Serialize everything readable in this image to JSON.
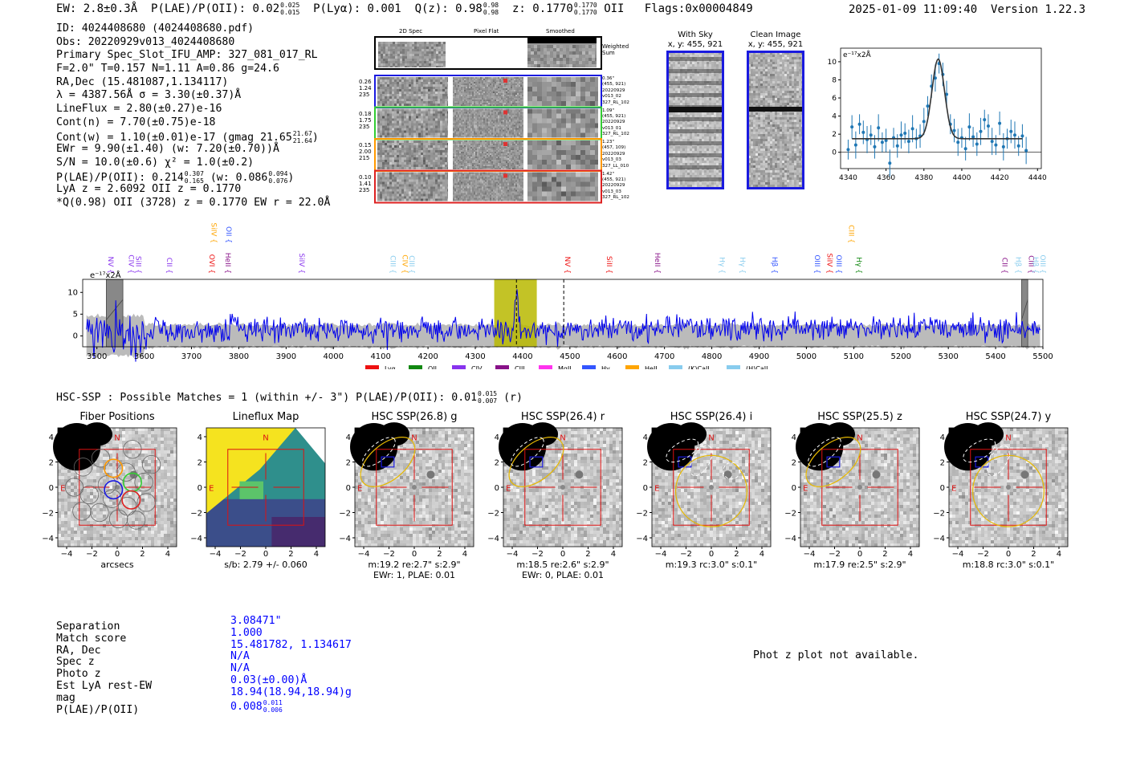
{
  "header": {
    "ew": "EW: 2.8±0.3Å",
    "plae_label": "P(LAE)/P(OII): 0.02",
    "plae_hi": "0.025",
    "plae_lo": "0.015",
    "plya": "P(Lyα): 0.001",
    "qz_label": "Q(z): 0.98",
    "qz_hi": "0.98",
    "qz_lo": "0.98",
    "z_label": "z: 0.1770",
    "z_hi": "0.1770",
    "z_lo": "0.1770",
    "z_line": "OII",
    "flags": "Flags:0x00004849",
    "datetime": "2025-01-09 11:09:40",
    "version": "Version 1.22.3"
  },
  "info": {
    "id": "ID: 4024408680 (4024408680.pdf)",
    "obs": "Obs: 20220929v013_4024408680",
    "primary": "Primary Spec_Slot_IFU_AMP: 327_081_017_RL",
    "fit": "F=2.0\"  T=0.157  N=1.11  A=0.86  g=24.6",
    "radec": "RA,Dec (15.481087,1.134117)",
    "lambda": "λ = 4387.56Å  σ = 3.30(±0.37)Å",
    "lineflux": "LineFlux = 2.80(±0.27)e-16",
    "cont_n": "Cont(n) = 7.70(±0.75)e-18",
    "cont_w": "Cont(w) = 1.10(±0.01)e-17 (gmag 21.65",
    "gmag_hi": "21.67",
    "gmag_lo": "21.64",
    "cont_w_end": ")",
    "ewr": "EWr = 9.90(±1.40) (w: 7.20(±0.70))Å",
    "sn": "S/N = 10.0(±0.6)  χ² = 1.0(±0.2)",
    "plae": "P(LAE)/P(OII): 0.214",
    "plae_hi": "0.307",
    "plae_lo": "0.165",
    "plae_w": "(w: 0.086",
    "plae_w_hi": "0.094",
    "plae_w_lo": "0.076",
    "plae_w_end": ")",
    "lya": "LyA z = 2.6092  OII z = 0.1770",
    "qline": "*Q(0.98) OII (3728) z = 0.1770  EW r = 22.0Å"
  },
  "cutouts": {
    "col_titles": [
      "2D Spec",
      "Pixel Flat",
      "Smoothed"
    ],
    "weighted_sum": "Weighted Sum",
    "rows": [
      {
        "left": [
          "0.26",
          "1.24",
          "235"
        ],
        "right": [
          "0.36\"",
          "(455, 921)",
          "20220929",
          "v013_02",
          "327_RL_102"
        ],
        "color": "#1a1adf"
      },
      {
        "left": [
          "0.18",
          "1.75",
          "235"
        ],
        "right": [
          "1.09\"",
          "(455, 921)",
          "20220929",
          "v013_01",
          "327_RL_102"
        ],
        "color": "#33cc33"
      },
      {
        "left": [
          "0.15",
          "2.00",
          "215"
        ],
        "right": [
          "1.23\"",
          "(457, 109)",
          "20220929",
          "v013_03",
          "327_LL_010"
        ],
        "color": "#ff9900"
      },
      {
        "left": [
          "0.10",
          "1.41",
          "235"
        ],
        "right": [
          "1.42\"",
          "(455, 921)",
          "20220929",
          "v013_03",
          "327_RL_102"
        ],
        "color": "#dd2222"
      }
    ]
  },
  "sky": {
    "with_sky_title": "With Sky",
    "with_sky_sub": "x, y: 455, 921",
    "clean_title": "Clean Image",
    "clean_sub": "x, y: 455, 921"
  },
  "chart_data": [
    {
      "type": "line",
      "title": "",
      "ylabel": "e⁻¹⁷x2Å",
      "x": [
        4340,
        4342,
        4344,
        4346,
        4348,
        4350,
        4352,
        4354,
        4356,
        4358,
        4360,
        4362,
        4364,
        4366,
        4368,
        4370,
        4372,
        4374,
        4376,
        4378,
        4380,
        4382,
        4384,
        4386,
        4388,
        4390,
        4392,
        4394,
        4396,
        4398,
        4400,
        4402,
        4404,
        4406,
        4408,
        4410,
        4412,
        4414,
        4416,
        4418,
        4420,
        4422,
        4424,
        4426,
        4428,
        4430,
        4432,
        4434
      ],
      "y": [
        0.3,
        2.8,
        0.8,
        3.1,
        2.2,
        1.4,
        1.9,
        0.6,
        2.7,
        1.1,
        1.3,
        -1.2,
        1.6,
        0.7,
        1.9,
        2.1,
        1.2,
        2.6,
        1.5,
        1.8,
        3.4,
        5.1,
        7.3,
        8.2,
        9.8,
        8.6,
        6.4,
        3.1,
        2.4,
        1.1,
        1.6,
        0.4,
        2.8,
        1.7,
        0.9,
        2.3,
        3.6,
        2.9,
        1.2,
        0.8,
        3.2,
        0.6,
        1.5,
        2.3,
        1.9,
        0.7,
        1.8,
        0.2
      ],
      "fit": {
        "amp": 8.8,
        "center": 4387.56,
        "sigma": 3.3,
        "cont": 1.5
      },
      "xticks": [
        4340,
        4360,
        4380,
        4400,
        4420,
        4440
      ],
      "yticks": [
        0,
        2,
        4,
        6,
        8,
        10
      ],
      "xlim": [
        4336,
        4442
      ],
      "ylim": [
        -1.8,
        11.5
      ]
    },
    {
      "type": "line",
      "ylabel": "e⁻¹⁷x2Å",
      "xlim": [
        3470,
        5500
      ],
      "ylim": [
        -2.5,
        13
      ],
      "xticks": [
        3500,
        3600,
        3700,
        3800,
        3900,
        4000,
        4100,
        4200,
        4300,
        4400,
        4500,
        4600,
        4700,
        4800,
        4900,
        5000,
        5100,
        5200,
        5300,
        5400,
        5500
      ],
      "yticks": [
        0,
        5,
        10
      ],
      "highlight": [
        4340,
        4430
      ],
      "marked_lines": [
        4387,
        4487
      ],
      "masked": [
        [
          3520,
          3555
        ],
        [
          5455,
          5468
        ]
      ],
      "legend": [
        {
          "label": "Lyα",
          "color": "#ee1111"
        },
        {
          "label": "OII",
          "color": "#118811"
        },
        {
          "label": "CIV",
          "color": "#8833ee"
        },
        {
          "label": "CIII",
          "color": "#881188"
        },
        {
          "label": "MgII",
          "color": "#ff33ee"
        },
        {
          "label": "Hγ",
          "color": "#3355ff"
        },
        {
          "label": "HeII",
          "color": "#ffa500"
        },
        {
          "label": "(K)CaII",
          "color": "#88ccee"
        },
        {
          "label": "(H)CaII",
          "color": "#88ccee"
        }
      ],
      "line_labels": [
        {
          "x": 3524,
          "label": "NV",
          "color": "#8833ee"
        },
        {
          "x": 3568,
          "label": "CIV",
          "color": "#8833ee"
        },
        {
          "x": 3583,
          "label": "SiII",
          "color": "#8833ee"
        },
        {
          "x": 3648,
          "label": "CII",
          "color": "#8833ee"
        },
        {
          "x": 3738,
          "label": "OVI",
          "color": "#ee1111"
        },
        {
          "x": 3742,
          "label": "SiIV",
          "color": "#ffa500",
          "high": true
        },
        {
          "x": 3772,
          "label": "HeII",
          "color": "#881188"
        },
        {
          "x": 3774,
          "label": "OII",
          "color": "#3355ff",
          "high": true
        },
        {
          "x": 3928,
          "label": "SiIV",
          "color": "#8833ee"
        },
        {
          "x": 4121,
          "label": "CIII",
          "color": "#88ccee"
        },
        {
          "x": 4146,
          "label": "CIV",
          "color": "#ffa500"
        },
        {
          "x": 4161,
          "label": "CIII",
          "color": "#88ccee"
        },
        {
          "x": 4490,
          "label": "NV",
          "color": "#ee1111"
        },
        {
          "x": 4578,
          "label": "SiII",
          "color": "#ee1111"
        },
        {
          "x": 4680,
          "label": "HeII",
          "color": "#881188"
        },
        {
          "x": 4817,
          "label": "Hγ",
          "color": "#88ccee"
        },
        {
          "x": 4860,
          "label": "Hγ",
          "color": "#88ccee"
        },
        {
          "x": 4928,
          "label": "Hβ",
          "color": "#3355ff"
        },
        {
          "x": 5018,
          "label": "OIII",
          "color": "#3355ff"
        },
        {
          "x": 5044,
          "label": "SiIV",
          "color": "#ee1111"
        },
        {
          "x": 5064,
          "label": "OIII",
          "color": "#3355ff"
        },
        {
          "x": 5090,
          "label": "CIII",
          "color": "#ffa500",
          "high": true
        },
        {
          "x": 5106,
          "label": "Hγ",
          "color": "#118811"
        },
        {
          "x": 5414,
          "label": "CII",
          "color": "#881188"
        },
        {
          "x": 5443,
          "label": "Hβ",
          "color": "#88ccee"
        },
        {
          "x": 5470,
          "label": "CIII",
          "color": "#881188"
        },
        {
          "x": 5480,
          "label": "Hβ",
          "color": "#88ccee"
        },
        {
          "x": 5530,
          "label": "OIII",
          "color": "#88ccee"
        }
      ]
    }
  ],
  "hsc": {
    "heading": "HSC-SSP : Possible Matches = 1 (within +/- 3\")  P(LAE)/P(OII): 0.01",
    "heading_hi": "0.015",
    "heading_lo": "0.007",
    "heading_end": "(r)",
    "panels": [
      {
        "title": "Fiber Positions",
        "cap1": "arcsecs",
        "cap2": ""
      },
      {
        "title": "Lineflux Map",
        "cap1": "s/b: 2.79 +/- 0.060",
        "cap2": ""
      },
      {
        "title": "HSC SSP(26.8) g",
        "cap1": "m:19.2  re:2.7\"  s:2.9\"",
        "cap2": "EWr: 1, PLAE: 0.01"
      },
      {
        "title": "HSC SSP(26.4) r",
        "cap1": "m:18.5  re:2.6\"  s:2.9\"",
        "cap2": "EWr: 0, PLAE: 0.01"
      },
      {
        "title": "HSC SSP(26.4) i",
        "cap1": "m:19.3 rc:3.0\"  s:0.1\"",
        "cap2": ""
      },
      {
        "title": "HSC SSP(25.5) z",
        "cap1": "m:17.9  re:2.5\"  s:2.9\"",
        "cap2": ""
      },
      {
        "title": "HSC SSP(24.7) y",
        "cap1": "m:18.8 rc:3.0\"  s:0.1\"",
        "cap2": ""
      }
    ],
    "yticks": [
      "4",
      "2",
      "0",
      "−2",
      "−4"
    ],
    "xticks": [
      "−4",
      "−2",
      "0",
      "2",
      "4"
    ],
    "n_label": "N",
    "e_label": "E"
  },
  "match": {
    "labels": [
      "Separation",
      "Match score",
      "RA, Dec",
      "Spec z",
      "Photo z",
      "Est LyA rest-EW",
      "mag",
      "P(LAE)/P(OII)"
    ],
    "values": [
      "3.08471\"",
      "1.000",
      "15.481782, 1.134617",
      "N/A",
      "N/A",
      "0.03(±0.00)Å",
      "18.94(18.94,18.94)g",
      "0.008"
    ],
    "plae_hi": "0.011",
    "plae_lo": "0.006",
    "photz_note": "Phot z plot not available."
  }
}
